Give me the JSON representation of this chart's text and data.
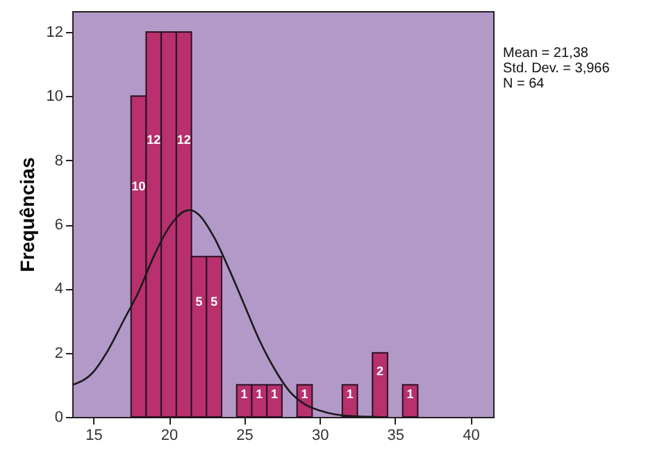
{
  "chart_data": {
    "type": "histogram",
    "ylabel": "Frequências",
    "annotations": [
      "Mean = 21,38",
      "Std. Dev. = 3,966",
      "N = 64"
    ],
    "bins": [
      17.5,
      18.5,
      19.5,
      20.5,
      21.5,
      22.5,
      23.5,
      24.5,
      25.5,
      26.5,
      27.5,
      28.5,
      29.5,
      30.5,
      31.5,
      32.5,
      33.5,
      34.5,
      35.5,
      36.5
    ],
    "values": [
      10,
      12,
      12,
      12,
      5,
      5,
      0,
      1,
      1,
      1,
      0,
      1,
      0,
      0,
      1,
      0,
      2,
      0,
      1
    ],
    "value_labels": [
      "10",
      "12",
      null,
      "12",
      "5",
      "5",
      null,
      "1",
      "1",
      "1",
      null,
      "1",
      null,
      null,
      "1",
      null,
      "2",
      null,
      "1"
    ],
    "color": "#b8306e",
    "series": [
      {
        "type": "line",
        "color": "#1a1a1a",
        "x": [
          13.6,
          15,
          16,
          17,
          18,
          19,
          20,
          21,
          21.4,
          22,
          23,
          24,
          25,
          26,
          27,
          28,
          29,
          30,
          31,
          32,
          33,
          34
        ],
        "values": [
          1.0,
          1.4,
          2.1,
          3.0,
          3.9,
          5.0,
          5.9,
          6.4,
          6.45,
          6.3,
          5.6,
          4.6,
          3.5,
          2.4,
          1.5,
          0.8,
          0.4,
          0.2,
          0.08,
          0.03,
          0.01,
          0
        ]
      }
    ],
    "xlim": [
      13.6,
      41.5
    ],
    "ylim": [
      0,
      12.65
    ],
    "xticks": [
      15,
      20,
      25,
      30,
      35,
      40
    ],
    "yticks": [
      0,
      2,
      4,
      6,
      8,
      10,
      12
    ],
    "grid": false
  }
}
